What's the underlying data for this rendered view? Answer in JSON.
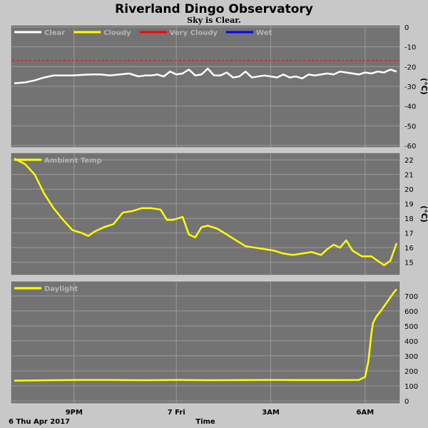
{
  "page": {
    "title": "Riverland Dingo Observatory",
    "subtitle": "Sky is Clear.",
    "date_label": "6 Thu Apr 2017",
    "xlabel": "Time",
    "x_ticks": [
      {
        "t": 1.75,
        "label": "9PM"
      },
      {
        "t": 5.0,
        "label": "7 Fri"
      },
      {
        "t": 8.0,
        "label": "3AM"
      },
      {
        "t": 11.0,
        "label": "6AM"
      }
    ]
  },
  "colors": {
    "background": "#c8c8c8",
    "plot_bg": "#737373",
    "grid": "#9a9a9a",
    "clear": "#ffffff",
    "cloudy": "#ffff00",
    "very_cloudy": "#ff0000",
    "wet": "#0000ff"
  },
  "chart_data": [
    {
      "type": "line",
      "title": "",
      "unit": "(°C)",
      "ylim": [
        -60,
        0
      ],
      "yticks": [
        0,
        -10,
        -20,
        -30,
        -40,
        -50,
        -60
      ],
      "legend": [
        {
          "name": "Clear",
          "color": "#ffffff"
        },
        {
          "name": "Cloudy",
          "color": "#ffff00"
        },
        {
          "name": "Very Cloudy",
          "color": "#ff0000"
        },
        {
          "name": "Wet",
          "color": "#0000ff"
        }
      ],
      "reference_lines": [
        {
          "y": -17,
          "color": "#ff0000",
          "style": "dashed"
        }
      ],
      "series": [
        {
          "name": "Clear",
          "color": "#ffffff",
          "x": [
            -0.15,
            0.2,
            0.5,
            0.8,
            1.1,
            1.4,
            1.7,
            2.0,
            2.3,
            2.6,
            2.9,
            3.2,
            3.5,
            3.8,
            4.0,
            4.2,
            4.4,
            4.6,
            4.8,
            5.0,
            5.2,
            5.4,
            5.6,
            5.8,
            6.0,
            6.2,
            6.4,
            6.6,
            6.8,
            7.0,
            7.2,
            7.4,
            7.6,
            7.8,
            8.0,
            8.2,
            8.4,
            8.6,
            8.8,
            9.0,
            9.2,
            9.4,
            9.6,
            9.8,
            10.0,
            10.2,
            10.4,
            10.6,
            10.8,
            11.0,
            11.2,
            11.4,
            11.6,
            11.8,
            12.0
          ],
          "y": [
            -28.5,
            -28.0,
            -27.0,
            -25.5,
            -24.5,
            -24.5,
            -24.5,
            -24.2,
            -24.0,
            -24.0,
            -24.5,
            -24.0,
            -23.5,
            -25.0,
            -24.5,
            -24.5,
            -24.0,
            -25.0,
            -22.5,
            -24.0,
            -23.5,
            -21.5,
            -24.5,
            -24.0,
            -21.0,
            -24.5,
            -24.5,
            -23.0,
            -25.5,
            -25.0,
            -22.5,
            -25.5,
            -25.0,
            -24.5,
            -25.0,
            -25.5,
            -24.0,
            -25.5,
            -25.0,
            -26.0,
            -24.0,
            -24.5,
            -24.0,
            -23.5,
            -24.0,
            -22.5,
            -23.0,
            -23.5,
            -24.0,
            -23.0,
            -23.5,
            -22.5,
            -23.0,
            -21.5,
            -22.5
          ]
        }
      ]
    },
    {
      "type": "line",
      "title": "",
      "unit": "(°C)",
      "ylim": [
        14.3,
        22.3
      ],
      "yticks": [
        15,
        16,
        17,
        18,
        19,
        20,
        21,
        22
      ],
      "legend": [
        {
          "name": "Ambient Temp",
          "color": "#ffff00"
        }
      ],
      "series": [
        {
          "name": "Ambient Temp",
          "color": "#ffff00",
          "x": [
            -0.15,
            0.2,
            0.5,
            0.8,
            1.1,
            1.4,
            1.7,
            2.0,
            2.2,
            2.4,
            2.7,
            3.0,
            3.3,
            3.6,
            3.9,
            4.2,
            4.5,
            4.7,
            4.9,
            5.2,
            5.4,
            5.6,
            5.8,
            6.0,
            6.3,
            6.6,
            6.9,
            7.2,
            7.5,
            7.8,
            8.1,
            8.4,
            8.7,
            9.0,
            9.3,
            9.6,
            9.8,
            10.0,
            10.2,
            10.4,
            10.6,
            10.9,
            11.2,
            11.4,
            11.6,
            11.8,
            12.0
          ],
          "y": [
            22.1,
            21.7,
            21.0,
            19.7,
            18.7,
            17.9,
            17.2,
            17.0,
            16.8,
            17.1,
            17.4,
            17.6,
            18.4,
            18.5,
            18.7,
            18.7,
            18.6,
            17.9,
            17.9,
            18.1,
            16.9,
            16.7,
            17.4,
            17.5,
            17.3,
            16.9,
            16.5,
            16.1,
            16.0,
            15.9,
            15.8,
            15.6,
            15.5,
            15.6,
            15.7,
            15.5,
            15.9,
            16.2,
            16.0,
            16.5,
            15.8,
            15.4,
            15.4,
            15.1,
            14.8,
            15.1,
            16.3
          ]
        }
      ]
    },
    {
      "type": "line",
      "title": "",
      "unit": "",
      "ylim": [
        0,
        780
      ],
      "yticks": [
        0,
        100,
        200,
        300,
        400,
        500,
        600,
        700
      ],
      "legend": [
        {
          "name": "Daylight",
          "color": "#ffff00"
        }
      ],
      "series": [
        {
          "name": "Daylight",
          "color": "#ffff00",
          "x": [
            -0.15,
            1.0,
            2.0,
            3.0,
            4.0,
            5.0,
            6.0,
            7.0,
            8.0,
            9.0,
            10.0,
            10.8,
            11.0,
            11.1,
            11.2,
            11.25,
            11.35,
            11.5,
            11.7,
            11.9,
            12.0
          ],
          "y": [
            135,
            138,
            140,
            140,
            138,
            140,
            138,
            139,
            140,
            139,
            139,
            140,
            160,
            260,
            450,
            520,
            560,
            600,
            660,
            720,
            745
          ]
        }
      ]
    }
  ]
}
